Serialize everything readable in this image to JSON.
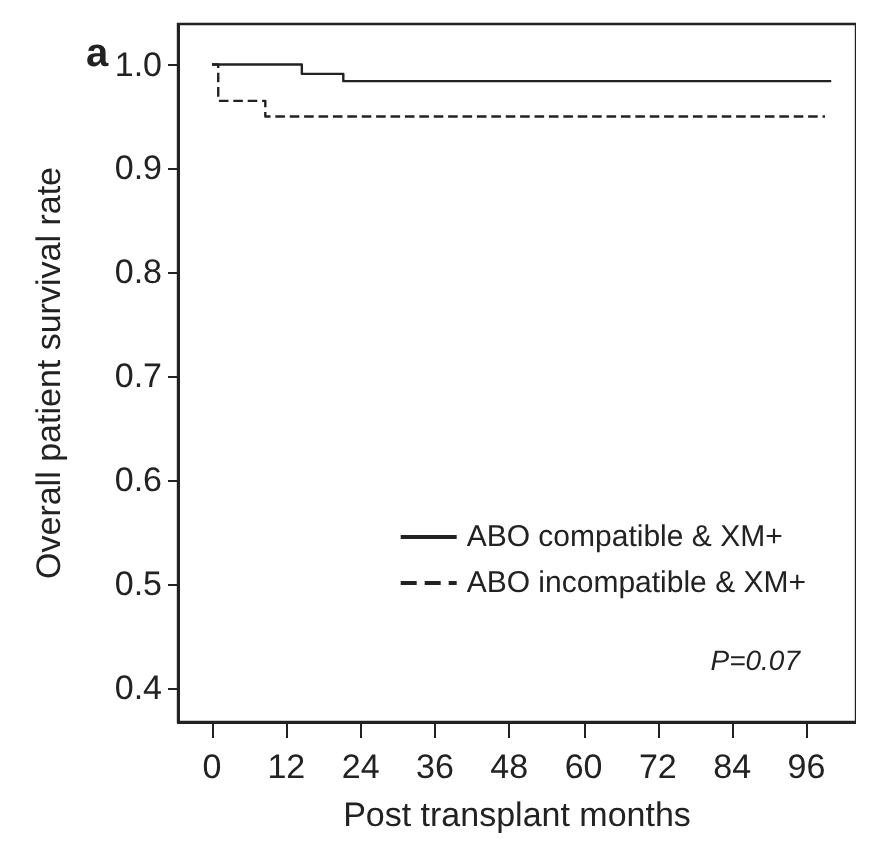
{
  "chart_data": {
    "type": "step",
    "title": "a",
    "xlabel": "Post transplant months",
    "ylabel": "Overall patient survival rate",
    "xlim": [
      -5.5,
      104
    ],
    "xticks": [
      0,
      12,
      24,
      36,
      48,
      60,
      72,
      84,
      96
    ],
    "ylim": [
      0.367,
      1.039
    ],
    "yticks": [
      0.4,
      0.5,
      0.6,
      0.7,
      0.8,
      0.9,
      {
        "value": 1.0,
        "label": "1.0"
      }
    ],
    "grid": false,
    "legend": "right",
    "marker": "none",
    "series": [
      {
        "name": "ABO compatible & XM+",
        "color": "#222222",
        "line_style": "solid",
        "x": [
          0,
          14.5,
          21.2,
          100
        ],
        "values": [
          1.0,
          0.991,
          0.984,
          0.984
        ]
      },
      {
        "name": "ABO incompatible & XM+",
        "color": "#222222",
        "line_style": "dashed",
        "x": [
          0,
          1,
          8.6,
          99
        ],
        "values": [
          1.0,
          0.965,
          0.95,
          0.95
        ]
      }
    ],
    "annotations": [
      "P=0.07"
    ]
  }
}
